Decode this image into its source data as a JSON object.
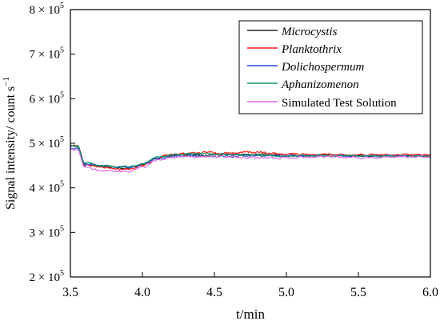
{
  "chart_data": {
    "type": "line",
    "xlabel": "t/min",
    "ylabel": {
      "main": "Signal intensity/ count s",
      "superscript": "−1"
    },
    "xlim": [
      3.5,
      6.0
    ],
    "ylim": [
      200000,
      800000
    ],
    "xticks": [
      {
        "value": 3.5,
        "label": "3.5"
      },
      {
        "value": 4.0,
        "label": "4.0"
      },
      {
        "value": 4.5,
        "label": "4.5"
      },
      {
        "value": 5.0,
        "label": "5.0"
      },
      {
        "value": 5.5,
        "label": "5.5"
      },
      {
        "value": 6.0,
        "label": "6.0"
      }
    ],
    "yticks": [
      {
        "value": 200000,
        "mantissa": "2",
        "times": " × 10",
        "exp": "5"
      },
      {
        "value": 300000,
        "mantissa": "3",
        "times": " × 10",
        "exp": "5"
      },
      {
        "value": 400000,
        "mantissa": "4",
        "times": " × 10",
        "exp": "5"
      },
      {
        "value": 500000,
        "mantissa": "5",
        "times": " × 10",
        "exp": "5"
      },
      {
        "value": 600000,
        "mantissa": "6",
        "times": " × 10",
        "exp": "5"
      },
      {
        "value": 700000,
        "mantissa": "7",
        "times": " × 10",
        "exp": "5"
      },
      {
        "value": 800000,
        "mantissa": "8",
        "times": " × 10",
        "exp": "5"
      }
    ],
    "grid": false,
    "legend": {
      "position": "top-right"
    },
    "series": [
      {
        "name": "Microcystis",
        "italic": true,
        "color": "#222222",
        "keypoints": [
          [
            3.5,
            497000
          ],
          [
            3.55,
            495000
          ],
          [
            3.6,
            455000
          ],
          [
            3.7,
            449000
          ],
          [
            3.8,
            446000
          ],
          [
            3.9,
            444000
          ],
          [
            4.0,
            452000
          ],
          [
            4.1,
            466000
          ],
          [
            4.2,
            473000
          ],
          [
            4.3,
            474000
          ],
          [
            4.5,
            474000
          ],
          [
            4.75,
            475000
          ],
          [
            5.0,
            473000
          ],
          [
            5.25,
            473000
          ],
          [
            5.5,
            472000
          ],
          [
            5.75,
            472000
          ],
          [
            6.0,
            472000
          ]
        ],
        "noise": 3500,
        "seed": 11
      },
      {
        "name": "Planktothrix",
        "italic": true,
        "color": "#ff1a1a",
        "keypoints": [
          [
            3.5,
            495000
          ],
          [
            3.55,
            493000
          ],
          [
            3.6,
            452000
          ],
          [
            3.7,
            447000
          ],
          [
            3.8,
            444000
          ],
          [
            3.9,
            441000
          ],
          [
            4.0,
            450000
          ],
          [
            4.1,
            466000
          ],
          [
            4.2,
            475000
          ],
          [
            4.3,
            478000
          ],
          [
            4.5,
            479000
          ],
          [
            4.75,
            480000
          ],
          [
            5.0,
            476000
          ],
          [
            5.25,
            475000
          ],
          [
            5.5,
            474000
          ],
          [
            5.75,
            475000
          ],
          [
            6.0,
            473000
          ]
        ],
        "noise": 3800,
        "seed": 23
      },
      {
        "name": "Dolichospermum",
        "italic": true,
        "color": "#1f4fd6",
        "keypoints": [
          [
            3.5,
            490000
          ],
          [
            3.55,
            489000
          ],
          [
            3.6,
            453000
          ],
          [
            3.7,
            450000
          ],
          [
            3.8,
            448000
          ],
          [
            3.9,
            446000
          ],
          [
            4.0,
            452000
          ],
          [
            4.1,
            465000
          ],
          [
            4.2,
            471000
          ],
          [
            4.3,
            472000
          ],
          [
            4.5,
            470000
          ],
          [
            4.75,
            472000
          ],
          [
            5.0,
            472000
          ],
          [
            5.25,
            471000
          ],
          [
            5.5,
            471000
          ],
          [
            5.75,
            472000
          ],
          [
            6.0,
            470000
          ]
        ],
        "noise": 3300,
        "seed": 37
      },
      {
        "name": "Aphanizomenon",
        "italic": true,
        "color": "#0b9a6a",
        "keypoints": [
          [
            3.5,
            493000
          ],
          [
            3.55,
            492000
          ],
          [
            3.6,
            455000
          ],
          [
            3.7,
            451000
          ],
          [
            3.8,
            449000
          ],
          [
            3.9,
            447000
          ],
          [
            4.0,
            454000
          ],
          [
            4.1,
            468000
          ],
          [
            4.2,
            474000
          ],
          [
            4.3,
            476000
          ],
          [
            4.5,
            476000
          ],
          [
            4.75,
            474000
          ],
          [
            5.0,
            471000
          ],
          [
            5.25,
            473000
          ],
          [
            5.5,
            472000
          ],
          [
            5.75,
            471000
          ],
          [
            6.0,
            471000
          ]
        ],
        "noise": 3400,
        "seed": 51
      },
      {
        "name": "Simulated Test Solution",
        "italic": false,
        "color": "#e36ae0",
        "keypoints": [
          [
            3.5,
            485000
          ],
          [
            3.55,
            484000
          ],
          [
            3.6,
            446000
          ],
          [
            3.7,
            440000
          ],
          [
            3.8,
            438000
          ],
          [
            3.9,
            436000
          ],
          [
            4.0,
            446000
          ],
          [
            4.1,
            463000
          ],
          [
            4.2,
            468000
          ],
          [
            4.3,
            470000
          ],
          [
            4.5,
            470000
          ],
          [
            4.75,
            468000
          ],
          [
            5.0,
            467000
          ],
          [
            5.25,
            470000
          ],
          [
            5.5,
            468000
          ],
          [
            5.75,
            469000
          ],
          [
            6.0,
            470000
          ]
        ],
        "noise": 3600,
        "seed": 73
      }
    ]
  }
}
